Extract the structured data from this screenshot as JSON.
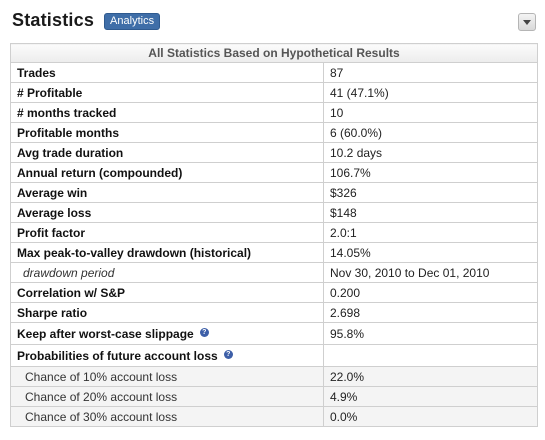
{
  "header": {
    "title": "Statistics",
    "badge": "Analytics",
    "collapse_icon": "chevron-down-icon"
  },
  "table": {
    "caption": "All Statistics Based on Hypothetical Results",
    "rows": [
      {
        "label": "Trades",
        "value": "87"
      },
      {
        "label": "# Profitable",
        "value": "41 (47.1%)"
      },
      {
        "label": "# months tracked",
        "value": "10"
      },
      {
        "label": "Profitable months",
        "value": "6 (60.0%)"
      },
      {
        "label": "Avg trade duration",
        "value": "10.2 days"
      },
      {
        "label": "Annual return (compounded)",
        "value": "106.7%"
      },
      {
        "label": "Average win",
        "value": "$326"
      },
      {
        "label": "Average loss",
        "value": "$148"
      },
      {
        "label": "Profit factor",
        "value": "2.0:1"
      },
      {
        "label": "Max peak-to-valley drawdown (historical)",
        "value": "14.05%"
      },
      {
        "label": "drawdown period",
        "value": "Nov 30, 2010 to Dec 01, 2010"
      },
      {
        "label": "Correlation w/ S&P",
        "value": "0.200"
      },
      {
        "label": "Sharpe ratio",
        "value": "2.698"
      },
      {
        "label": "Keep after worst-case slippage",
        "value": "95.8%",
        "help_icon": "question-icon"
      },
      {
        "label": "Probabilities of future account loss",
        "value": "",
        "help_icon": "question-icon"
      },
      {
        "label": "Chance of 10% account loss",
        "value": "22.0%"
      },
      {
        "label": "Chance of 20% account loss",
        "value": "4.9%"
      },
      {
        "label": "Chance of 30% account loss",
        "value": "0.0%"
      }
    ]
  },
  "colors": {
    "badge_bg": "#3f6ea8",
    "border": "#cfcfcf",
    "help_icon": "#3d5fa8"
  }
}
